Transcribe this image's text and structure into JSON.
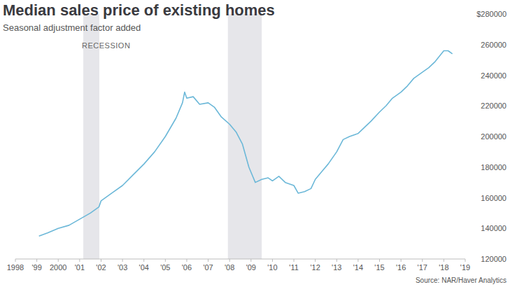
{
  "chart_data": {
    "type": "line",
    "title": "Median sales price of existing homes",
    "subtitle": "Seasonal adjustment factor added",
    "source": "Source: NAR/Haver Analytics",
    "annotations": [
      "RECESSION"
    ],
    "recessions": [
      {
        "start": 2001.17,
        "end": 2001.92
      },
      {
        "start": 2007.92,
        "end": 2009.5
      }
    ],
    "x": [
      1999.1,
      1999.5,
      2000.0,
      2000.5,
      2001.0,
      2001.5,
      2001.9,
      2002.0,
      2002.5,
      2003.0,
      2003.5,
      2004.0,
      2004.5,
      2005.0,
      2005.5,
      2005.8,
      2005.9,
      2006.0,
      2006.3,
      2006.6,
      2007.0,
      2007.3,
      2007.6,
      2008.0,
      2008.3,
      2008.6,
      2008.9,
      2009.2,
      2009.5,
      2009.8,
      2010.0,
      2010.3,
      2010.6,
      2011.0,
      2011.2,
      2011.5,
      2011.8,
      2012.0,
      2012.3,
      2012.6,
      2013.0,
      2013.3,
      2013.6,
      2014.0,
      2014.3,
      2014.6,
      2015.0,
      2015.3,
      2015.6,
      2016.0,
      2016.3,
      2016.6,
      2017.0,
      2017.3,
      2017.6,
      2018.0,
      2018.2,
      2018.4
    ],
    "values": [
      135000,
      137000,
      140000,
      142000,
      146000,
      150000,
      154000,
      158000,
      163000,
      168000,
      175000,
      182000,
      190000,
      200000,
      212000,
      222000,
      229000,
      225000,
      226000,
      221000,
      222000,
      219000,
      213000,
      208000,
      203000,
      195000,
      180000,
      170000,
      172000,
      173000,
      171000,
      174000,
      170000,
      168000,
      163000,
      164000,
      166000,
      172000,
      177000,
      182000,
      190000,
      198000,
      200000,
      202000,
      206000,
      210000,
      216000,
      220000,
      225000,
      229000,
      233000,
      238000,
      242000,
      245000,
      249000,
      256000,
      256000,
      254000
    ],
    "color": "#6cb8d8",
    "xlim": [
      1998,
      2019
    ],
    "xticks": [
      1998,
      {
        "value": 1999,
        "label": "'99"
      },
      2000,
      {
        "value": 2001,
        "label": "'01"
      },
      {
        "value": 2002,
        "label": "'02"
      },
      {
        "value": 2003,
        "label": "'03"
      },
      {
        "value": 2004,
        "label": "'04"
      },
      {
        "value": 2005,
        "label": "'05"
      },
      {
        "value": 2006,
        "label": "'06"
      },
      {
        "value": 2007,
        "label": "'07"
      },
      {
        "value": 2008,
        "label": "'08"
      },
      {
        "value": 2009,
        "label": "'09"
      },
      {
        "value": 2010,
        "label": "'10"
      },
      {
        "value": 2011,
        "label": "'11"
      },
      {
        "value": 2012,
        "label": "'12"
      },
      {
        "value": 2013,
        "label": "'13"
      },
      {
        "value": 2014,
        "label": "'14"
      },
      {
        "value": 2015,
        "label": "'15"
      },
      {
        "value": 2016,
        "label": "'16"
      },
      {
        "value": 2017,
        "label": "'17"
      },
      {
        "value": 2018,
        "label": "'18"
      },
      {
        "value": 2019,
        "label": "'19"
      }
    ],
    "ylim": [
      120000,
      280000
    ],
    "yticks": [
      120000,
      140000,
      160000,
      180000,
      200000,
      220000,
      240000,
      260000,
      {
        "value": 280000,
        "label": "$280000"
      }
    ],
    "grid": false
  }
}
